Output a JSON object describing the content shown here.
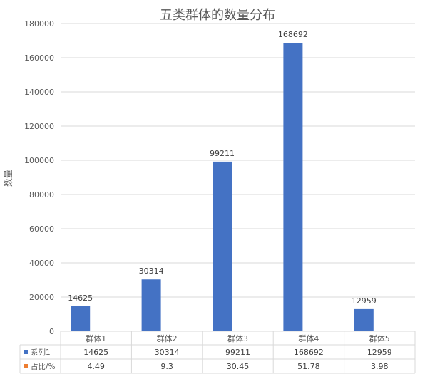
{
  "chart_data": {
    "type": "bar",
    "title": "五类群体的数量分布",
    "ylabel": "数量",
    "xlabel": "",
    "categories": [
      "群体1",
      "群体2",
      "群体3",
      "群体4",
      "群体5"
    ],
    "ylim": [
      0,
      180000
    ],
    "yticks": [
      0,
      20000,
      40000,
      60000,
      80000,
      100000,
      120000,
      140000,
      160000,
      180000
    ],
    "grid": true,
    "series": [
      {
        "name": "系列1",
        "values": [
          14625,
          30314,
          99211,
          168692,
          12959
        ],
        "color": "#4472C4"
      },
      {
        "name": "占比/%",
        "values": [
          4.49,
          9.3,
          30.45,
          51.78,
          3.98
        ],
        "color": "#ED7D31"
      }
    ],
    "data_table": {
      "rows": [
        {
          "label": "系列1",
          "cells": [
            "14625",
            "30314",
            "99211",
            "168692",
            "12959"
          ]
        },
        {
          "label": "占比/%",
          "cells": [
            "4.49",
            "9.3",
            "30.45",
            "51.78",
            "3.98"
          ]
        }
      ]
    }
  }
}
